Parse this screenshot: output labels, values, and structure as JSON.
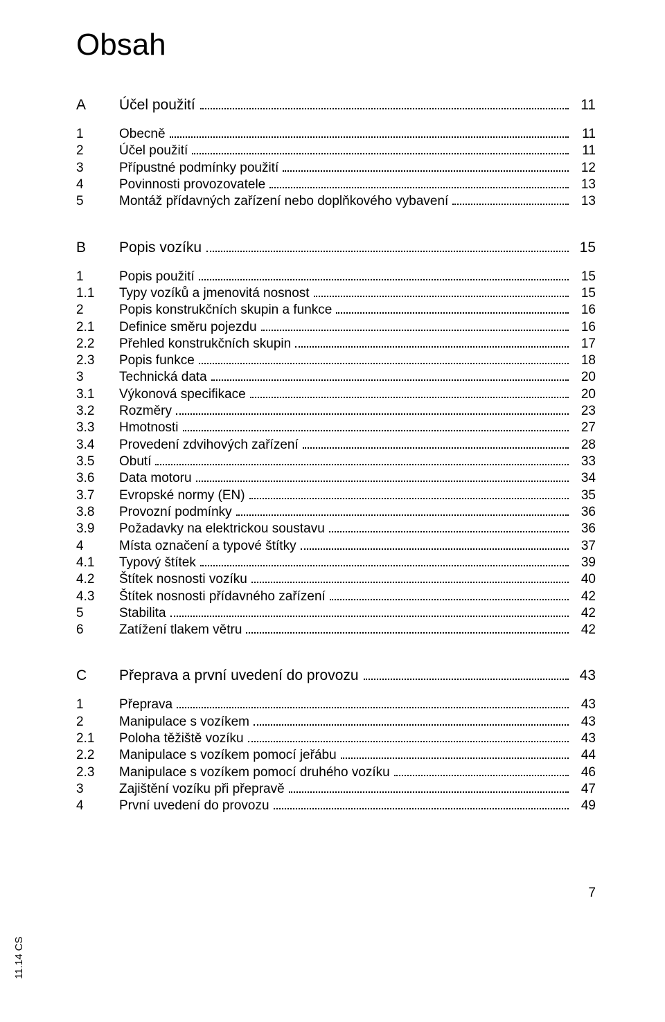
{
  "title": "Obsah",
  "side_label": "11.14 CS",
  "footer_page": "7",
  "sections": [
    {
      "letter": "A",
      "title": "Účel použití",
      "page": "11",
      "entries": [
        {
          "num": "1",
          "label": "Obecně",
          "page": "11"
        },
        {
          "num": "2",
          "label": "Účel použití",
          "page": "11"
        },
        {
          "num": "3",
          "label": "Přípustné podmínky použití",
          "page": "12"
        },
        {
          "num": "4",
          "label": "Povinnosti provozovatele",
          "page": "13"
        },
        {
          "num": "5",
          "label": "Montáž přídavných zařízení nebo doplňkového vybavení",
          "page": "13"
        }
      ]
    },
    {
      "letter": "B",
      "title": "Popis vozíku",
      "page": "15",
      "entries": [
        {
          "num": "1",
          "label": "Popis použití",
          "page": "15"
        },
        {
          "num": "1.1",
          "label": "Typy vozíků a jmenovitá nosnost",
          "page": "15"
        },
        {
          "num": "2",
          "label": "Popis konstrukčních skupin a funkce",
          "page": "16"
        },
        {
          "num": "2.1",
          "label": "Definice směru pojezdu",
          "page": "16"
        },
        {
          "num": "2.2",
          "label": "Přehled konstrukčních skupin",
          "page": "17"
        },
        {
          "num": "2.3",
          "label": "Popis funkce",
          "page": "18"
        },
        {
          "num": "3",
          "label": "Technická data",
          "page": "20"
        },
        {
          "num": "3.1",
          "label": "Výkonová specifikace",
          "page": "20"
        },
        {
          "num": "3.2",
          "label": "Rozměry",
          "page": "23"
        },
        {
          "num": "3.3",
          "label": "Hmotnosti",
          "page": "27"
        },
        {
          "num": "3.4",
          "label": "Provedení zdvihových zařízení",
          "page": "28"
        },
        {
          "num": "3.5",
          "label": "Obutí",
          "page": "33"
        },
        {
          "num": "3.6",
          "label": "Data motoru",
          "page": "34"
        },
        {
          "num": "3.7",
          "label": "Evropské normy (EN)",
          "page": "35"
        },
        {
          "num": "3.8",
          "label": "Provozní podmínky",
          "page": "36"
        },
        {
          "num": "3.9",
          "label": "Požadavky na elektrickou soustavu",
          "page": "36"
        },
        {
          "num": "4",
          "label": "Místa označení a typové štítky",
          "page": "37"
        },
        {
          "num": "4.1",
          "label": "Typový štítek",
          "page": "39"
        },
        {
          "num": "4.2",
          "label": "Štítek nosnosti vozíku",
          "page": "40"
        },
        {
          "num": "4.3",
          "label": "Štítek nosnosti přídavného zařízení",
          "page": "42"
        },
        {
          "num": "5",
          "label": "Stabilita",
          "page": "42"
        },
        {
          "num": "6",
          "label": "Zatížení tlakem větru",
          "page": "42"
        }
      ]
    },
    {
      "letter": "C",
      "title": "Přeprava a první uvedení do provozu",
      "page": "43",
      "entries": [
        {
          "num": "1",
          "label": "Přeprava",
          "page": "43"
        },
        {
          "num": "2",
          "label": "Manipulace s vozíkem",
          "page": "43"
        },
        {
          "num": "2.1",
          "label": "Poloha těžiště vozíku",
          "page": "43"
        },
        {
          "num": "2.2",
          "label": "Manipulace s vozíkem pomocí jeřábu",
          "page": "44"
        },
        {
          "num": "2.3",
          "label": "Manipulace s vozíkem pomocí druhého vozíku",
          "page": "46"
        },
        {
          "num": "3",
          "label": "Zajištění vozíku při přepravě",
          "page": "47"
        },
        {
          "num": "4",
          "label": "První uvedení do provozu",
          "page": "49"
        }
      ]
    }
  ]
}
